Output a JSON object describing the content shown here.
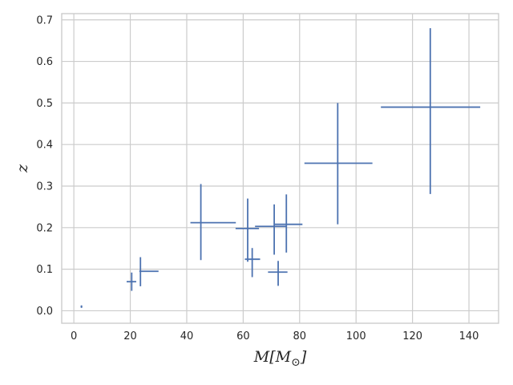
{
  "chart_data": {
    "type": "scatter",
    "title": "",
    "xlabel": "M[M_⊙]",
    "xlabel_parts": {
      "main": "M[M",
      "sub": "⊙",
      "close": "]"
    },
    "ylabel": "z",
    "xlim": [
      -4.3,
      150.5
    ],
    "ylim": [
      -0.03,
      0.715
    ],
    "xticks": [
      0,
      20,
      40,
      60,
      80,
      100,
      120,
      140
    ],
    "xtick_labels": [
      "0",
      "20",
      "40",
      "60",
      "80",
      "100",
      "120",
      "140"
    ],
    "yticks": [
      0.0,
      0.1,
      0.2,
      0.3,
      0.4,
      0.5,
      0.6,
      0.7
    ],
    "ytick_labels": [
      "0.0",
      "0.1",
      "0.2",
      "0.3",
      "0.4",
      "0.5",
      "0.6",
      "0.7"
    ],
    "grid": true,
    "series": [
      {
        "color": "#4c72b0",
        "points": [
          {
            "x": 2.7,
            "y": 0.01,
            "xerr": [
              0.3,
              0.3
            ],
            "yerr": [
              0.003,
              0.003
            ]
          },
          {
            "x": 20.5,
            "y": 0.07,
            "xerr": [
              1.8,
              1.6
            ],
            "yerr": [
              0.022,
              0.022
            ]
          },
          {
            "x": 23.6,
            "y": 0.095,
            "xerr": [
              0.4,
              6.4
            ],
            "yerr": [
              0.036,
              0.034
            ]
          },
          {
            "x": 45.0,
            "y": 0.212,
            "xerr": [
              3.7,
              12.4
            ],
            "yerr": [
              0.09,
              0.093
            ]
          },
          {
            "x": 61.6,
            "y": 0.198,
            "xerr": [
              4.3,
              4.0
            ],
            "yerr": [
              0.08,
              0.072
            ]
          },
          {
            "x": 63.2,
            "y": 0.124,
            "xerr": [
              2.6,
              2.8
            ],
            "yerr": [
              0.043,
              0.027
            ]
          },
          {
            "x": 71.0,
            "y": 0.203,
            "xerr": [
              6.8,
              4.5
            ],
            "yerr": [
              0.068,
              0.053
            ]
          },
          {
            "x": 72.4,
            "y": 0.093,
            "xerr": [
              3.6,
              3.3
            ],
            "yerr": [
              0.033,
              0.027
            ]
          },
          {
            "x": 75.3,
            "y": 0.208,
            "xerr": [
              4.3,
              5.7
            ],
            "yerr": [
              0.068,
              0.072
            ]
          },
          {
            "x": 93.5,
            "y": 0.355,
            "xerr": [
              11.8,
              12.3
            ],
            "yerr": [
              0.147,
              0.145
            ]
          },
          {
            "x": 126.3,
            "y": 0.49,
            "xerr": [
              17.5,
              17.7
            ],
            "yerr": [
              0.209,
              0.19
            ]
          }
        ]
      }
    ]
  }
}
